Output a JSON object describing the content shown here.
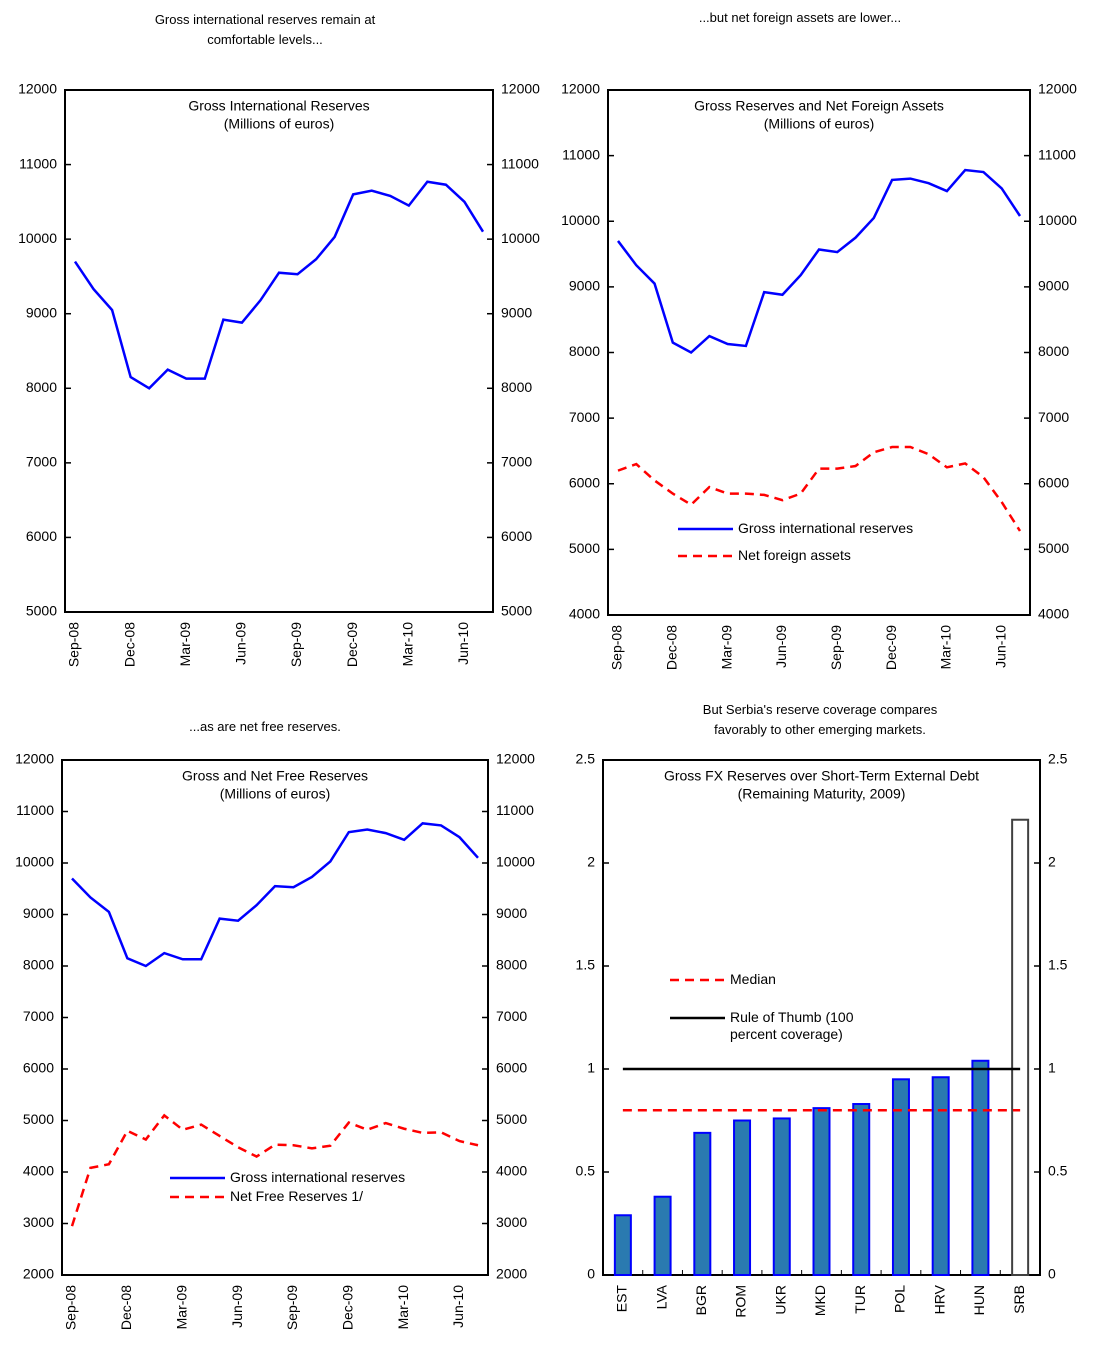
{
  "chart_data": [
    {
      "type": "line",
      "headline": "Gross international reserves remain at comfortable levels...",
      "title": "Gross International Reserves",
      "subtitle": "(Millions of euros)",
      "categories": [
        "Sep-08",
        null,
        null,
        "Dec-08",
        null,
        null,
        "Mar-09",
        null,
        null,
        "Jun-09",
        null,
        null,
        "Sep-09",
        null,
        null,
        "Dec-09",
        null,
        null,
        "Mar-10",
        null,
        null,
        "Jun-10",
        null
      ],
      "series": [
        {
          "name": "Gross international reserves",
          "color": "#0000ff",
          "values": [
            9700,
            9330,
            9050,
            8150,
            8000,
            8250,
            8130,
            8130,
            8920,
            8880,
            9180,
            9550,
            9530,
            9730,
            10030,
            10600,
            10650,
            10580,
            10450,
            10770,
            10730,
            10500,
            10100
          ]
        }
      ],
      "legend": null,
      "ylim": [
        5000,
        12000
      ],
      "yticks": [
        5000,
        6000,
        7000,
        8000,
        9000,
        10000,
        11000,
        12000
      ],
      "y2lim": [
        5000,
        12000
      ],
      "y2ticks": [
        5000,
        6000,
        7000,
        8000,
        9000,
        10000,
        11000,
        12000
      ]
    },
    {
      "type": "line",
      "headline": "...but net foreign assets are lower...",
      "title": "Gross Reserves and Net Foreign Assets",
      "subtitle": "(Millions of euros)",
      "categories": [
        "Sep-08",
        null,
        null,
        "Dec-08",
        null,
        null,
        "Mar-09",
        null,
        null,
        "Jun-09",
        null,
        null,
        "Sep-09",
        null,
        null,
        "Dec-09",
        null,
        null,
        "Mar-10",
        null,
        null,
        "Jun-10",
        null
      ],
      "series": [
        {
          "name": "Gross international reserves",
          "color": "#0000ff",
          "values": [
            9700,
            9330,
            9050,
            8150,
            8000,
            8250,
            8130,
            8100,
            8920,
            8880,
            9180,
            9570,
            9530,
            9750,
            10050,
            10630,
            10650,
            10580,
            10460,
            10780,
            10750,
            10500,
            10080
          ]
        },
        {
          "name": "Net foreign assets",
          "color": "#ff0000",
          "dash": true,
          "values": [
            6200,
            6300,
            6050,
            5850,
            5680,
            5950,
            5850,
            5850,
            5830,
            5750,
            5850,
            6230,
            6230,
            6270,
            6480,
            6560,
            6560,
            6450,
            6250,
            6310,
            6100,
            5720,
            5280
          ]
        }
      ],
      "legend": "lower center",
      "ylim": [
        4000,
        12000
      ],
      "yticks": [
        4000,
        5000,
        6000,
        7000,
        8000,
        9000,
        10000,
        11000,
        12000
      ],
      "y2lim": [
        4000,
        12000
      ],
      "y2ticks": [
        4000,
        5000,
        6000,
        7000,
        8000,
        9000,
        10000,
        11000,
        12000
      ]
    },
    {
      "type": "line",
      "headline": "...as are net free reserves.",
      "title": "Gross and Net Free Reserves",
      "subtitle": "(Millions of euros)",
      "categories": [
        "Sep-08",
        null,
        null,
        "Dec-08",
        null,
        null,
        "Mar-09",
        null,
        null,
        "Jun-09",
        null,
        null,
        "Sep-09",
        null,
        null,
        "Dec-09",
        null,
        null,
        "Mar-10",
        null,
        null,
        "Jun-10",
        null
      ],
      "series": [
        {
          "name": "Gross international reserves",
          "color": "#0000ff",
          "values": [
            9700,
            9330,
            9050,
            8150,
            8000,
            8250,
            8130,
            8130,
            8920,
            8880,
            9180,
            9550,
            9530,
            9730,
            10030,
            10600,
            10650,
            10580,
            10450,
            10770,
            10730,
            10500,
            10100
          ]
        },
        {
          "name": "Net Free Reserves 1/",
          "color": "#ff0000",
          "dash": true,
          "values": [
            2950,
            4080,
            4150,
            4800,
            4630,
            5100,
            4820,
            4920,
            4700,
            4480,
            4300,
            4530,
            4520,
            4460,
            4510,
            4960,
            4820,
            4950,
            4840,
            4760,
            4770,
            4600,
            4520
          ]
        }
      ],
      "legend": "lower left",
      "ylim": [
        2000,
        12000
      ],
      "yticks": [
        2000,
        3000,
        4000,
        5000,
        6000,
        7000,
        8000,
        9000,
        10000,
        11000,
        12000
      ],
      "y2lim": [
        2000,
        12000
      ],
      "y2ticks": [
        2000,
        3000,
        4000,
        5000,
        6000,
        7000,
        8000,
        9000,
        10000,
        11000,
        12000
      ]
    },
    {
      "type": "bar",
      "headline": "But Serbia's reserve coverage compares favorably to other emerging markets.",
      "title": "Gross FX Reserves over Short-Term External Debt",
      "subtitle": "(Remaining Maturity, 2009)",
      "categories": [
        "EST",
        "LVA",
        "BGR",
        "ROM",
        "UKR",
        "MKD",
        "TUR",
        "POL",
        "HRV",
        "HUN",
        "SRB"
      ],
      "values": [
        0.29,
        0.38,
        0.69,
        0.75,
        0.76,
        0.81,
        0.83,
        0.95,
        0.96,
        1.04,
        2.21
      ],
      "colors": [
        "#2a7ab0",
        "#2a7ab0",
        "#2a7ab0",
        "#2a7ab0",
        "#2a7ab0",
        "#2a7ab0",
        "#2a7ab0",
        "#2a7ab0",
        "#2a7ab0",
        "#2a7ab0",
        "#ffffff"
      ],
      "edge_colors": [
        "#0000ff",
        "#0000ff",
        "#0000ff",
        "#0000ff",
        "#0000ff",
        "#0000ff",
        "#0000ff",
        "#0000ff",
        "#0000ff",
        "#0000ff",
        "#404040"
      ],
      "reference_lines": [
        {
          "name": "Median",
          "value": 0.8,
          "color": "#ff0000",
          "dash": true
        },
        {
          "name": "Rule of Thumb (100 percent coverage)",
          "value": 1,
          "color": "#000000"
        }
      ],
      "legend": "center left",
      "ylim": [
        0,
        2.5
      ],
      "yticks": [
        0,
        0.5,
        1,
        1.5,
        2,
        2.5
      ],
      "y2lim": [
        0,
        2.5
      ],
      "y2ticks": [
        0,
        0.5,
        1,
        1.5,
        2,
        2.5
      ]
    }
  ]
}
